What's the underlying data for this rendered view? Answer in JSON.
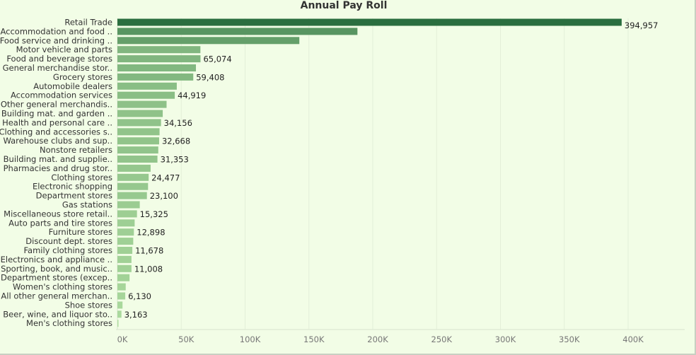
{
  "chart_data": {
    "type": "bar",
    "orientation": "horizontal",
    "title": "Annual Pay Roll",
    "xlabel": "",
    "ylabel": "",
    "xlim": [
      0,
      400000
    ],
    "x_ticks": [
      "0K",
      "50K",
      "100K",
      "150K",
      "200K",
      "250K",
      "300K",
      "350K",
      "400K"
    ],
    "grid": true,
    "categories": [
      "Retail Trade",
      "Accommodation and food ..",
      "Food service and drinking ..",
      "Motor vehicle and parts",
      "Food and beverage stores",
      "General merchandise stor..",
      "Grocery stores",
      "Automobile dealers",
      "Accommodation services",
      "Other general merchandis..",
      "Building mat. and garden ..",
      "Health and personal care ..",
      "Clothing and accessories s..",
      "Warehouse clubs and sup..",
      "Nonstore retailers",
      "Building mat. and supplie..",
      "Pharmacies and drug stor..",
      "Clothing stores",
      "Electronic shopping",
      "Department stores",
      "Gas stations",
      "Miscellaneous store retail..",
      "Auto parts and tire stores",
      "Furniture stores",
      "Discount dept. stores",
      "Family clothing stores",
      "Electronics and appliance ..",
      "Sporting, book, and  music..",
      "Department stores (excep..",
      "Women's clothing stores",
      "All other general merchan..",
      "Shoe stores",
      "Beer, wine, and liquor sto..",
      "Men's clothing stores"
    ],
    "values": [
      394957,
      188000,
      142500,
      65000,
      65074,
      61500,
      59408,
      46500,
      44919,
      38500,
      35500,
      34156,
      33000,
      32668,
      32000,
      31353,
      26000,
      24477,
      24000,
      23100,
      17500,
      15325,
      13500,
      12898,
      12400,
      11678,
      11000,
      11008,
      9500,
      6500,
      6130,
      4000,
      3163,
      500
    ],
    "labels": [
      "394,957",
      "",
      "",
      "",
      "65,074",
      "",
      "59,408",
      "",
      "44,919",
      "",
      "",
      "34,156",
      "",
      "32,668",
      "",
      "31,353",
      "",
      "24,477",
      "",
      "23,100",
      "",
      "15,325",
      "",
      "12,898",
      "",
      "11,678",
      "",
      "11,008",
      "",
      "",
      "6,130",
      "",
      "3,163",
      ""
    ],
    "color_low": "#b4e1a4",
    "color_high": "#2a6e3f"
  }
}
